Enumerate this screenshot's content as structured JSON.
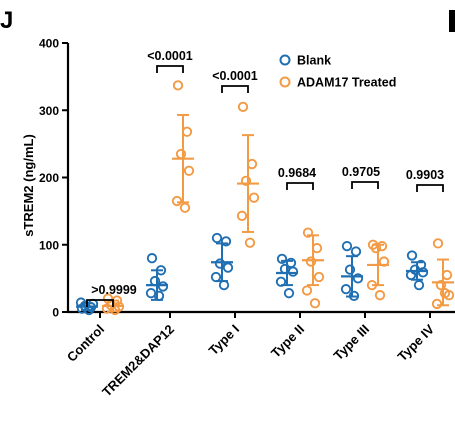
{
  "panel_label": "J",
  "chart_data": {
    "type": "scatter",
    "ylabel": "sTREM2 (ng/mL)",
    "ylim": [
      0,
      400
    ],
    "yticks": [
      "0",
      "100",
      "200",
      "300",
      "400"
    ],
    "categories": [
      "Control",
      "TREM2&DAP12",
      "Type I",
      "Type II",
      "Type III",
      "Type IV"
    ],
    "legend_position": "top-right",
    "colors": {
      "Blank": "#1f6fb2",
      "ADAM17 Treated": "#f39a45"
    },
    "series": [
      {
        "name": "Blank",
        "points": [
          [
            5,
            7,
            9,
            12,
            14,
            3
          ],
          [
            80,
            62,
            46,
            38,
            28,
            24
          ],
          [
            110,
            105,
            72,
            66,
            52,
            40
          ],
          [
            79,
            73,
            64,
            60,
            45,
            28
          ],
          [
            98,
            90,
            63,
            50,
            34,
            24
          ],
          [
            84,
            70,
            63,
            59,
            55,
            40
          ]
        ],
        "means": [
          8,
          40,
          74,
          58,
          53,
          61
        ],
        "sds": [
          5,
          22,
          28,
          18,
          30,
          13
        ]
      },
      {
        "name": "ADAM17 Treated",
        "points": [
          [
            20,
            17,
            10,
            8,
            5,
            3
          ],
          [
            337,
            268,
            235,
            210,
            165,
            155
          ],
          [
            305,
            220,
            195,
            170,
            143,
            103
          ],
          [
            118,
            95,
            75,
            52,
            32,
            13
          ],
          [
            100,
            98,
            95,
            75,
            40,
            25
          ],
          [
            102,
            55,
            40,
            25,
            12,
            28
          ]
        ],
        "means": [
          9,
          228,
          191,
          77,
          70,
          44
        ],
        "sds": [
          8,
          65,
          72,
          37,
          30,
          34
        ]
      }
    ],
    "annotations": [
      ">0.9999",
      "<0.0001",
      "<0.0001",
      "0.9684",
      "0.9705",
      "0.9903"
    ]
  }
}
